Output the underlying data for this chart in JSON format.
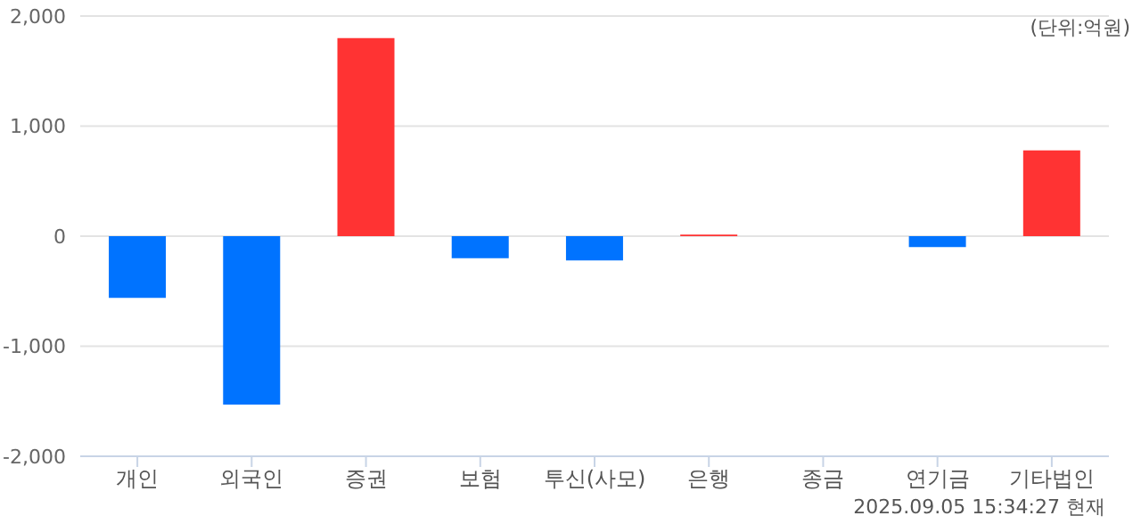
{
  "chart_data": {
    "type": "bar",
    "categories": [
      "개인",
      "외국인",
      "증권",
      "보험",
      "투신(사모)",
      "은행",
      "종금",
      "연기금",
      "기타법인"
    ],
    "values": [
      -560,
      -1530,
      1800,
      -200,
      -220,
      15,
      0,
      -100,
      780
    ],
    "colors": [
      "#0073ff",
      "#0073ff",
      "#ff3333",
      "#0073ff",
      "#0073ff",
      "#ff3333",
      "#ff3333",
      "#0073ff",
      "#ff3333"
    ],
    "ylim": [
      -2000,
      2000
    ],
    "yticks": [
      {
        "value": 2000,
        "label": "2,000"
      },
      {
        "value": 1000,
        "label": "1,000"
      },
      0,
      {
        "value": -1000,
        "label": "-1,000"
      },
      {
        "value": -2000,
        "label": "-2,000"
      }
    ],
    "grid": "y",
    "legend": false,
    "annotations": [
      "(단위:억원)",
      "2025.09.05 15:34:27 현재"
    ]
  }
}
